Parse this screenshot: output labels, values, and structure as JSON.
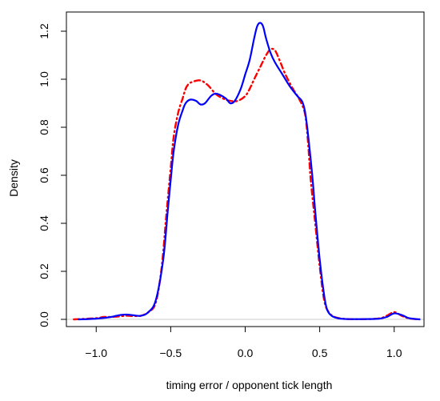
{
  "chart_data": {
    "type": "line",
    "title": "",
    "xlabel": "timing error / opponent tick length",
    "ylabel": "Density",
    "xlim": [
      -1.2,
      1.2
    ],
    "ylim": [
      -0.03,
      1.28
    ],
    "x_ticks": [
      -1.0,
      -0.5,
      0.0,
      0.5,
      1.0
    ],
    "x_tick_labels": [
      "−1.0",
      "−0.5",
      "0.0",
      "0.5",
      "1.0"
    ],
    "y_ticks": [
      0.0,
      0.2,
      0.4,
      0.6,
      0.8,
      1.0,
      1.2
    ],
    "y_tick_labels": [
      "0.0",
      "0.2",
      "0.4",
      "0.6",
      "0.8",
      "1.0",
      "1.2"
    ],
    "grid": false,
    "legend": false,
    "baseline_color": "#cccccc",
    "series": [
      {
        "color": "#0000ff",
        "style": "solid",
        "x": [
          -1.12,
          -1.0,
          -0.9,
          -0.85,
          -0.8,
          -0.75,
          -0.7,
          -0.65,
          -0.6,
          -0.55,
          -0.52,
          -0.5,
          -0.48,
          -0.45,
          -0.42,
          -0.4,
          -0.37,
          -0.33,
          -0.3,
          -0.27,
          -0.23,
          -0.2,
          -0.17,
          -0.13,
          -0.1,
          -0.07,
          -0.03,
          0.0,
          0.03,
          0.06,
          0.08,
          0.1,
          0.12,
          0.14,
          0.17,
          0.2,
          0.25,
          0.3,
          0.35,
          0.38,
          0.4,
          0.42,
          0.45,
          0.47,
          0.5,
          0.53,
          0.55,
          0.58,
          0.62,
          0.66,
          0.7,
          0.8,
          0.9,
          0.95,
          1.0,
          1.05,
          1.1,
          1.17
        ],
        "y": [
          0.0,
          0.003,
          0.01,
          0.017,
          0.02,
          0.017,
          0.015,
          0.03,
          0.08,
          0.25,
          0.45,
          0.58,
          0.7,
          0.81,
          0.87,
          0.9,
          0.915,
          0.91,
          0.895,
          0.9,
          0.93,
          0.94,
          0.935,
          0.92,
          0.9,
          0.91,
          0.96,
          1.02,
          1.08,
          1.17,
          1.22,
          1.235,
          1.22,
          1.17,
          1.11,
          1.07,
          1.02,
          0.97,
          0.93,
          0.91,
          0.87,
          0.78,
          0.6,
          0.45,
          0.25,
          0.1,
          0.04,
          0.015,
          0.005,
          0.002,
          0.001,
          0.001,
          0.003,
          0.01,
          0.025,
          0.018,
          0.005,
          0.0
        ]
      },
      {
        "color": "#ff0000",
        "style": "dash-dot",
        "x": [
          -1.15,
          -1.0,
          -0.95,
          -0.9,
          -0.85,
          -0.8,
          -0.75,
          -0.7,
          -0.65,
          -0.6,
          -0.56,
          -0.53,
          -0.5,
          -0.48,
          -0.45,
          -0.42,
          -0.4,
          -0.38,
          -0.35,
          -0.3,
          -0.25,
          -0.2,
          -0.15,
          -0.1,
          -0.05,
          0.0,
          0.03,
          0.06,
          0.1,
          0.14,
          0.17,
          0.2,
          0.23,
          0.27,
          0.32,
          0.36,
          0.4,
          0.42,
          0.44,
          0.47,
          0.5,
          0.53,
          0.56,
          0.6,
          0.65,
          0.7,
          0.8,
          0.9,
          0.95,
          1.0,
          1.05,
          1.1,
          1.17
        ],
        "y": [
          0.0,
          0.005,
          0.01,
          0.01,
          0.012,
          0.015,
          0.014,
          0.015,
          0.03,
          0.07,
          0.22,
          0.43,
          0.63,
          0.76,
          0.86,
          0.92,
          0.96,
          0.98,
          0.99,
          0.995,
          0.975,
          0.94,
          0.92,
          0.91,
          0.91,
          0.93,
          0.96,
          1.0,
          1.05,
          1.1,
          1.125,
          1.12,
          1.08,
          1.02,
          0.96,
          0.92,
          0.86,
          0.75,
          0.58,
          0.4,
          0.22,
          0.08,
          0.03,
          0.01,
          0.003,
          0.001,
          0.001,
          0.004,
          0.015,
          0.03,
          0.015,
          0.004,
          0.0
        ]
      }
    ]
  }
}
